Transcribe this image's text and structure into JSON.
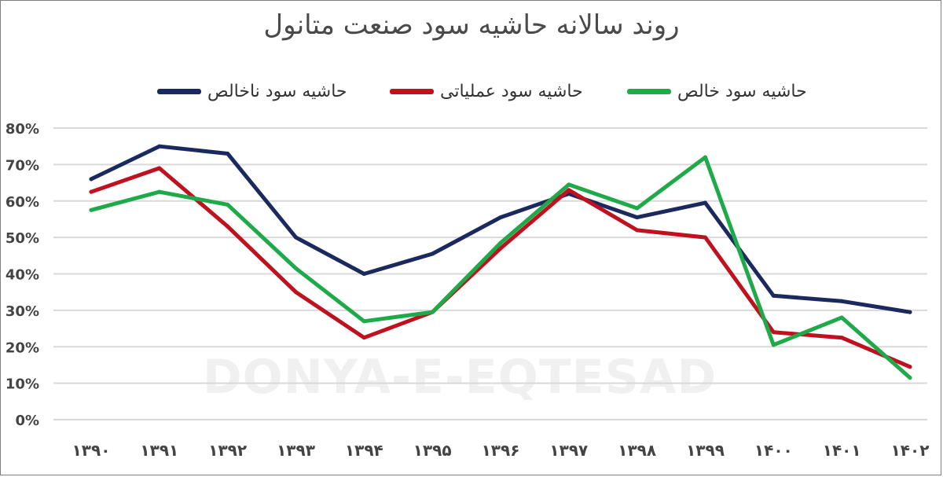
{
  "chart_data": {
    "type": "line",
    "title": "روند سالانه حاشیه سود صنعت متانول",
    "xlabel": "",
    "ylabel": "",
    "categories": [
      "۱۳۹۰",
      "۱۳۹۱",
      "۱۳۹۲",
      "۱۳۹۳",
      "۱۳۹۴",
      "۱۳۹۵",
      "۱۳۹۶",
      "۱۳۹۷",
      "۱۳۹۸",
      "۱۳۹۹",
      "۱۴۰۰",
      "۱۴۰۱",
      "۱۴۰۲"
    ],
    "y_tick_labels": [
      "0%",
      "10%",
      "20%",
      "30%",
      "40%",
      "50%",
      "60%",
      "70%",
      "80%"
    ],
    "ylim": [
      0,
      80
    ],
    "grid": true,
    "legend_position": "top",
    "series": [
      {
        "name": "حاشیه سود ناخالص",
        "color": "#1b2a5e",
        "values": [
          66,
          75,
          73,
          50,
          40,
          45.5,
          55.5,
          62,
          55.5,
          59.5,
          34,
          32.5,
          29.5
        ]
      },
      {
        "name": "حاشیه سود عملیاتی",
        "color": "#c0111f",
        "values": [
          62.5,
          69,
          53,
          35,
          22.5,
          29.5,
          47,
          63,
          52,
          50,
          24,
          22.5,
          14.5
        ]
      },
      {
        "name": "حاشیه سود خالص",
        "color": "#1faa4a",
        "values": [
          57.5,
          62.5,
          59,
          41.5,
          27,
          29.5,
          48.5,
          64.5,
          58,
          72,
          20.5,
          28,
          11.5
        ]
      }
    ]
  },
  "watermark": {
    "latin": "DONYA-E-EQTESAD"
  }
}
